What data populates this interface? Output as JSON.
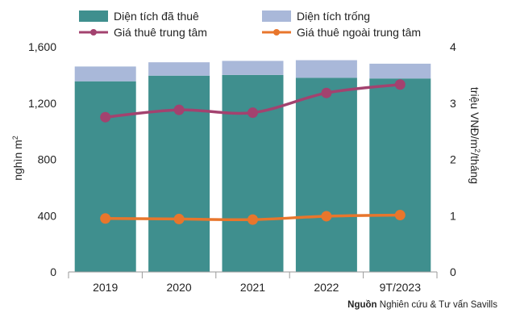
{
  "chart_data": {
    "type": "bar",
    "categories": [
      "2019",
      "2020",
      "2021",
      "2022",
      "9T/2023"
    ],
    "series": [
      {
        "name": "Diện tích đã thuê",
        "kind": "stacked-bar",
        "axis": "left",
        "color": "#3f8f8e",
        "values": [
          1355,
          1395,
          1400,
          1380,
          1375
        ]
      },
      {
        "name": "Diện tích trống",
        "kind": "stacked-bar",
        "axis": "left",
        "color": "#a9b8d9",
        "values": [
          105,
          95,
          100,
          125,
          105
        ]
      },
      {
        "name": "Giá thuê trung tâm",
        "kind": "line",
        "axis": "right",
        "color": "#a3426f",
        "values": [
          2.75,
          2.88,
          2.83,
          3.18,
          3.33
        ]
      },
      {
        "name": "Giá thuê ngoài trung tâm",
        "kind": "line",
        "axis": "right",
        "color": "#e8762c",
        "values": [
          0.95,
          0.94,
          0.93,
          0.99,
          1.01
        ]
      }
    ],
    "left_axis": {
      "label_main": "nghìn m",
      "label_sup": "2",
      "ylim": [
        0,
        1600
      ],
      "ticks": [
        "0",
        "400",
        "800",
        "1,200",
        "1,600"
      ]
    },
    "right_axis": {
      "label_main": "triệu VNĐ/m",
      "label_sup": "2",
      "label_tail": "/tháng",
      "ylim": [
        0,
        4
      ],
      "ticks": [
        "0",
        "1",
        "2",
        "3",
        "4"
      ]
    },
    "legend_position": "top",
    "grid": false
  },
  "source": {
    "label": "Nguồn",
    "text": "Nghiên cứu & Tư vấn Savills"
  }
}
